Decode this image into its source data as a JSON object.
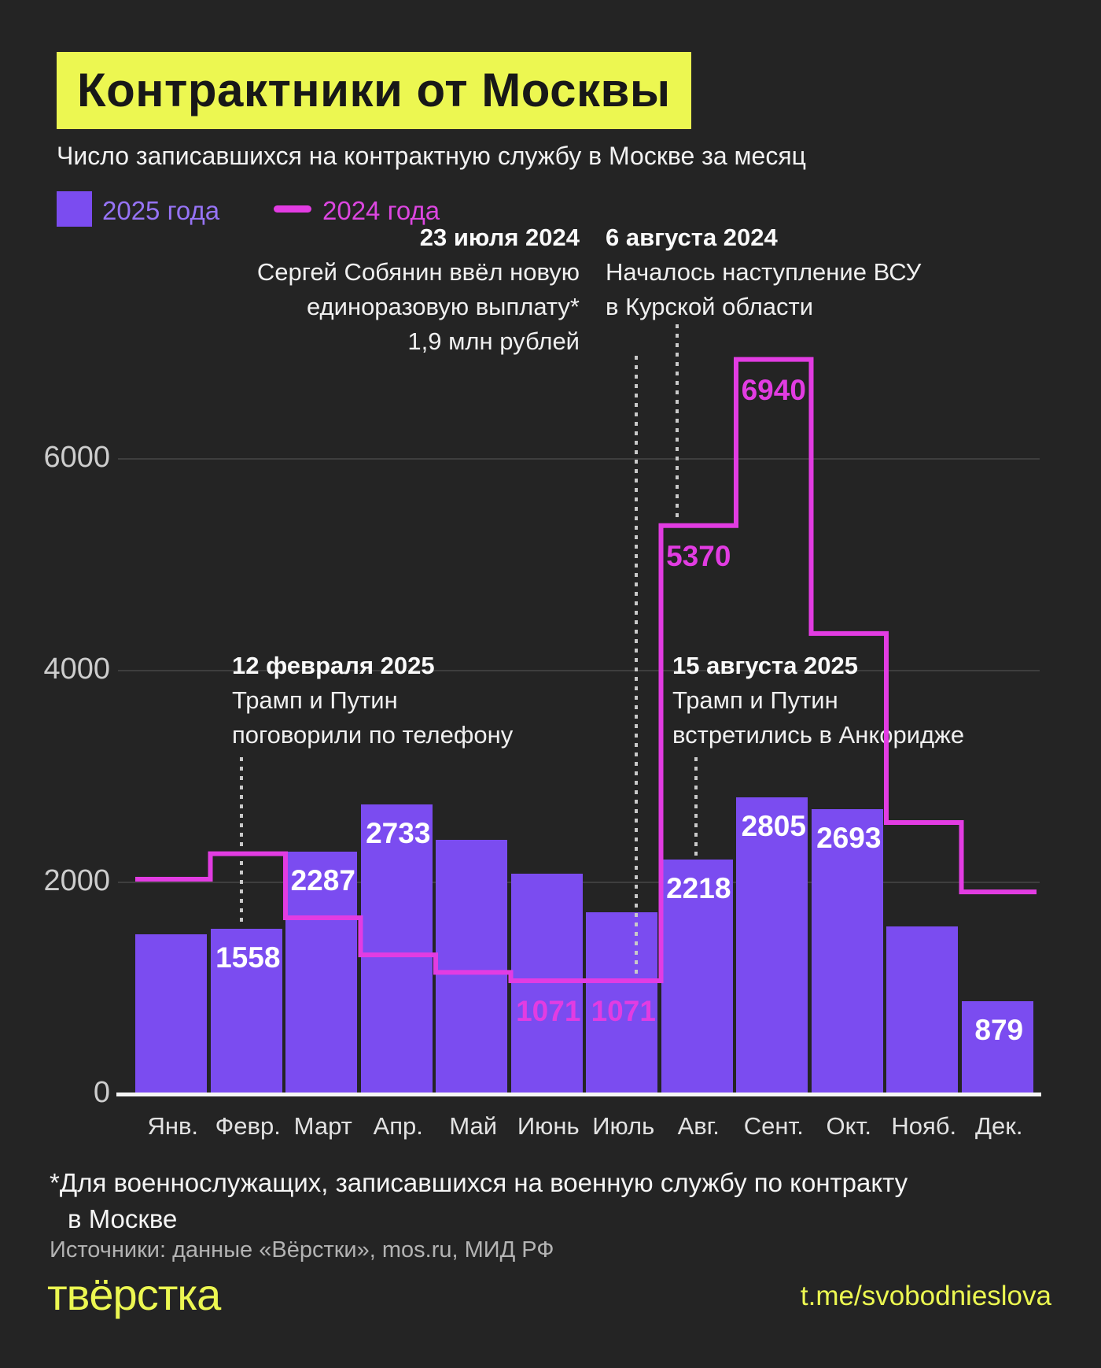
{
  "colors": {
    "background": "#242424",
    "accent_yellow": "#ECF751",
    "bar_purple": "#7B4CF0",
    "line_magenta": "#E23CE2",
    "legend_purple_text": "#9673F5",
    "legend_magenta_text": "#DC46E0",
    "title_text": "#181818"
  },
  "header": {
    "title": "Контрактники от Москвы",
    "subtitle": "Число записавшихся на контрактную службу в Москве за месяц"
  },
  "legend": {
    "item_2025": {
      "label": "2025 года",
      "swatch": "square",
      "color": "#7B4CF0",
      "text_color": "#9673F5"
    },
    "item_2024": {
      "label": "2024 года",
      "swatch": "line",
      "color": "#E23CE2",
      "text_color": "#DC46E0"
    }
  },
  "annotations": [
    {
      "id": "jul2024",
      "date": "23 июля 2024",
      "lines": [
        "Сергей Собянин ввёл новую",
        "единоразовую выплату*",
        "1,9 млн рублей"
      ],
      "align": "right"
    },
    {
      "id": "aug2024",
      "date": "6 августа 2024",
      "lines": [
        "Началось наступление ВСУ",
        "в Курской области"
      ],
      "align": "left"
    },
    {
      "id": "feb2025",
      "date": "12 февраля 2025",
      "lines": [
        "Трамп и Путин",
        "поговорили по телефону"
      ],
      "align": "left"
    },
    {
      "id": "aug2025",
      "date": "15 августа 2025",
      "lines": [
        "Трамп и Путин",
        "встретились в Анкоридже"
      ],
      "align": "left"
    }
  ],
  "chart_data": {
    "type": "bar",
    "title": "Число записавшихся на контрактную службу в Москве за месяц",
    "categories": [
      "Янв.",
      "Февр.",
      "Март",
      "Апр.",
      "Май",
      "Июнь",
      "Июль",
      "Авг.",
      "Сент.",
      "Окт.",
      "Нояб.",
      "Дек."
    ],
    "series": [
      {
        "name": "2025 года",
        "type": "bar",
        "color": "#7B4CF0",
        "values": [
          1510,
          1558,
          2287,
          2733,
          2400,
          2080,
          1720,
          2218,
          2805,
          2693,
          1585,
          879
        ],
        "value_labels_shown": [
          false,
          true,
          true,
          true,
          false,
          false,
          false,
          true,
          true,
          true,
          false,
          true
        ]
      },
      {
        "name": "2024 года",
        "type": "step-line",
        "color": "#E23CE2",
        "values": [
          2030,
          2270,
          1665,
          1315,
          1150,
          1071,
          1071,
          5370,
          6940,
          4350,
          2565,
          1910
        ],
        "value_labels_shown": [
          false,
          false,
          false,
          false,
          false,
          true,
          true,
          true,
          true,
          false,
          false,
          false
        ]
      }
    ],
    "xlabel": "",
    "ylabel": "",
    "yticks": [
      0,
      2000,
      4000,
      6000
    ],
    "ylim": [
      0,
      7300
    ],
    "grid": true,
    "legend_position": "top-left"
  },
  "footer": {
    "footnote_line1": "*Для военнослужащих, записавшихся на военную службу по контракту",
    "footnote_line2": "в Москве",
    "sources": "Источники: данные «Вёрстки», mos.ru, МИД РФ",
    "logo": "твёрстка",
    "handle": "t.me/svobodnieslova"
  }
}
